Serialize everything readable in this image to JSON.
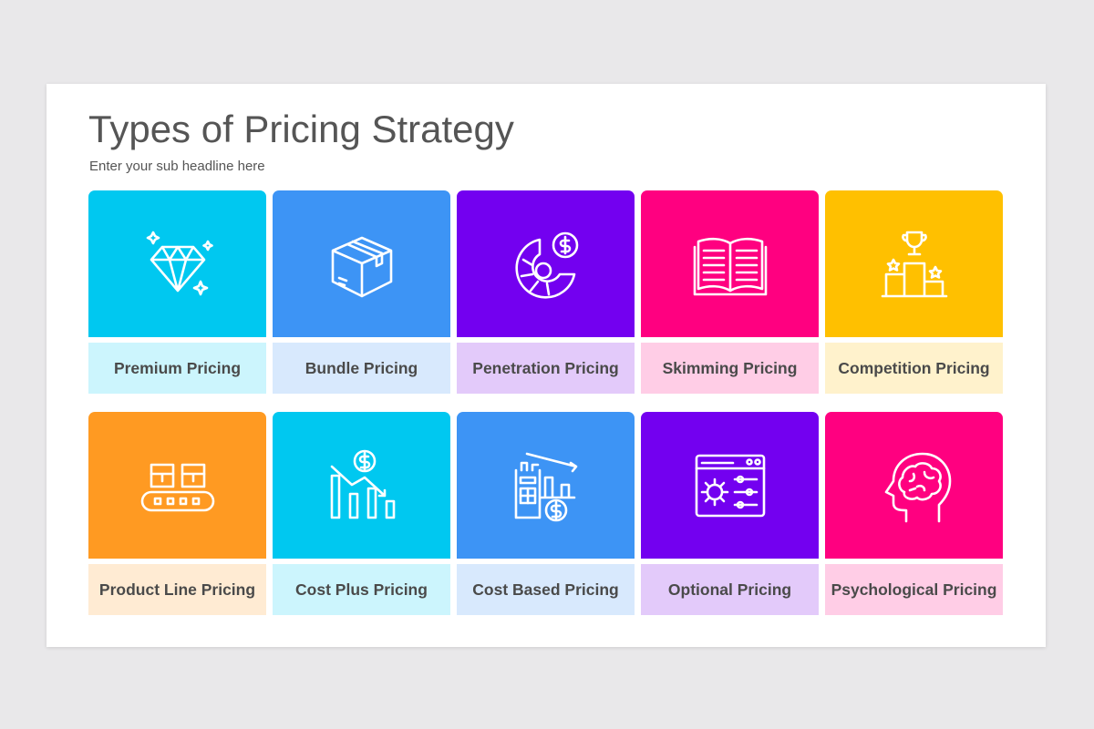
{
  "title": "Types of Pricing Strategy",
  "subtitle": "Enter your sub headline here",
  "tiles": [
    {
      "label": "Premium Pricing",
      "icon": "diamond-icon",
      "color": "#00c8f0",
      "light": "#ccf5fd"
    },
    {
      "label": "Bundle Pricing",
      "icon": "box-icon",
      "color": "#3d94f5",
      "light": "#d8e9fd"
    },
    {
      "label": "Penetration Pricing",
      "icon": "pie-dollar-icon",
      "color": "#7300f0",
      "light": "#e3cafa"
    },
    {
      "label": "Skimming Pricing",
      "icon": "open-book-icon",
      "color": "#ff0080",
      "light": "#ffcde6"
    },
    {
      "label": "Competition Pricing",
      "icon": "podium-trophy-icon",
      "color": "#ffc000",
      "light": "#fff2cc"
    },
    {
      "label": "Product Line Pricing",
      "icon": "conveyor-belt-icon",
      "color": "#ff9a22",
      "light": "#ffebd3"
    },
    {
      "label": "Cost Plus Pricing",
      "icon": "declining-bars-dollar-icon",
      "color": "#00c8f0",
      "light": "#ccf5fd"
    },
    {
      "label": "Cost Based Pricing",
      "icon": "calculator-chart-icon",
      "color": "#3d94f5",
      "light": "#d8e9fd"
    },
    {
      "label": "Optional Pricing",
      "icon": "settings-window-icon",
      "color": "#7300f0",
      "light": "#e3cafa"
    },
    {
      "label": "Psychological Pricing",
      "icon": "head-brain-icon",
      "color": "#ff0080",
      "light": "#ffcde6"
    }
  ]
}
